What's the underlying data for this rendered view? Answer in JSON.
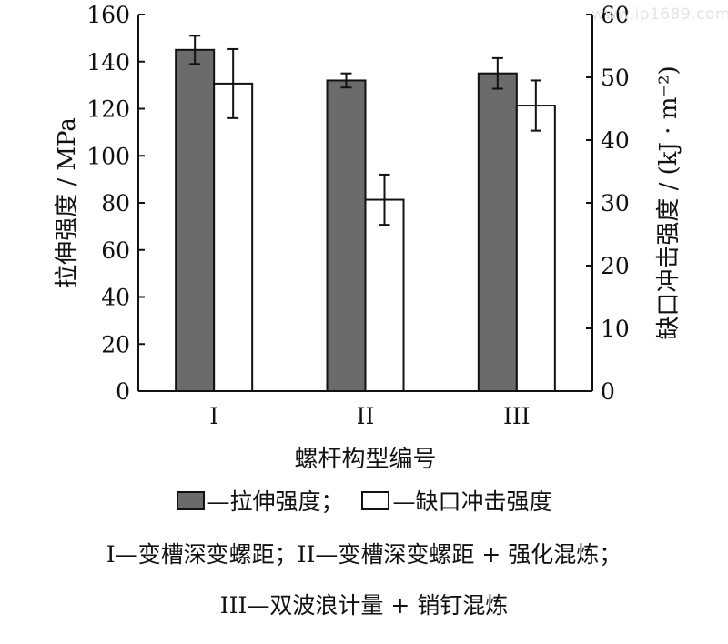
{
  "watermark": "www.ip1689.com",
  "chart_data": {
    "type": "bar",
    "categories": [
      "I",
      "II",
      "III"
    ],
    "xlabel": "螺杆构型编号",
    "ylabel_left": "拉伸强度 / MPa",
    "ylabel_right": "缺口冲击强度 / (kJ · m⁻²)",
    "ylim_left": [
      0,
      160
    ],
    "ylim_right": [
      0,
      60
    ],
    "yticks_left": [
      0,
      20,
      40,
      60,
      80,
      100,
      120,
      140,
      160
    ],
    "yticks_right": [
      0,
      10,
      20,
      30,
      40,
      50,
      60
    ],
    "grid": false,
    "legend_position": "bottom",
    "series": [
      {
        "name": "拉伸强度",
        "axis": "left",
        "color": "#6b6b6b",
        "values": [
          145,
          132,
          135
        ],
        "errors": [
          6,
          3,
          6.5
        ]
      },
      {
        "name": "缺口冲击强度",
        "axis": "right",
        "color": "#ffffff",
        "values": [
          49,
          30.5,
          45.5
        ],
        "errors": [
          5.5,
          4,
          4
        ]
      }
    ]
  },
  "legend": {
    "items": [
      {
        "label": "—拉伸强度；",
        "color": "#6b6b6b"
      },
      {
        "label": "—缺口冲击强度",
        "color": "#ffffff"
      }
    ]
  },
  "notes": [
    "I—变槽深变螺距；II—变槽深变螺距 + 强化混炼；",
    "III—双波浪计量 + 销钉混炼"
  ]
}
